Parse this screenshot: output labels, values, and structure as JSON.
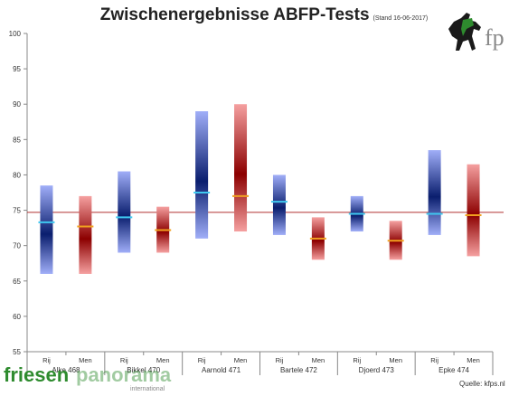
{
  "chart_data": {
    "type": "range_bar",
    "title": "Zwischenergebnisse ABFP-Tests",
    "subtitle": "(Stand 16-06-2017)",
    "ylim": [
      55,
      100
    ],
    "yticks": [
      55,
      60,
      65,
      70,
      75,
      80,
      85,
      90,
      95,
      100
    ],
    "reference_line": 74.7,
    "groups": [
      {
        "name": "Alke 468",
        "bars": [
          {
            "label": "Rij",
            "min": 66,
            "max": 78.5,
            "mean": 73.3
          },
          {
            "label": "Men",
            "min": 66,
            "max": 77,
            "mean": 72.7
          }
        ]
      },
      {
        "name": "Bikkel 470",
        "bars": [
          {
            "label": "Rij",
            "min": 69,
            "max": 80.5,
            "mean": 74
          },
          {
            "label": "Men",
            "min": 69,
            "max": 75.5,
            "mean": 72.2
          }
        ]
      },
      {
        "name": "Aarnold 471",
        "bars": [
          {
            "label": "Rij",
            "min": 71,
            "max": 89,
            "mean": 77.5
          },
          {
            "label": "Men",
            "min": 72,
            "max": 90,
            "mean": 77
          }
        ]
      },
      {
        "name": "Bartele 472",
        "bars": [
          {
            "label": "Rij",
            "min": 71.5,
            "max": 80,
            "mean": 76.2
          },
          {
            "label": "Men",
            "min": 68,
            "max": 74,
            "mean": 71
          }
        ]
      },
      {
        "name": "Djoerd 473",
        "bars": [
          {
            "label": "Rij",
            "min": 72,
            "max": 77,
            "mean": 74.5
          },
          {
            "label": "Men",
            "min": 68,
            "max": 73.5,
            "mean": 70.7
          }
        ]
      },
      {
        "name": "Epke 474",
        "bars": [
          {
            "label": "Rij",
            "min": 71.5,
            "max": 83.5,
            "mean": 74.5
          },
          {
            "label": "Men",
            "min": 68.5,
            "max": 81.5,
            "mean": 74.3
          }
        ]
      }
    ],
    "colors": {
      "rij_dark": "#0a1e6e",
      "rij_light": "#a0aef8",
      "men_dark": "#8c0000",
      "men_light": "#f5a0a0",
      "rij_mean": "#3fc8f0",
      "men_mean": "#f0a020",
      "reference": "#b03030",
      "axis": "#888888"
    },
    "grid": false
  },
  "logo": {
    "letters": "fp"
  },
  "brand": {
    "part1": "friesen",
    "part2": "panorama",
    "tagline": "international"
  },
  "source": "Quelle: kfps.nl"
}
